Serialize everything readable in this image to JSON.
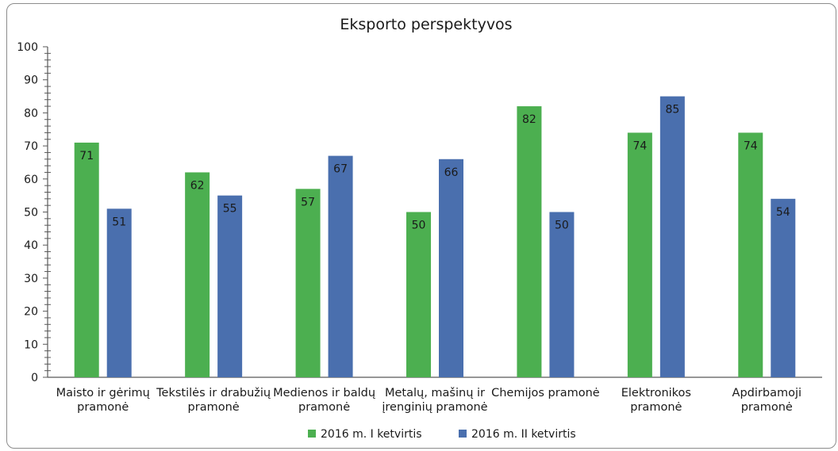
{
  "chart_data": {
    "type": "bar",
    "title": "Eksporto perspektyvos",
    "xlabel": "",
    "ylabel": "",
    "ylim": [
      0,
      100
    ],
    "yticks": [
      0,
      10,
      20,
      30,
      40,
      50,
      60,
      70,
      80,
      90,
      100
    ],
    "categories": [
      [
        "Maisto ir gėrimų",
        "pramonė"
      ],
      [
        "Tekstilės ir drabužių",
        "pramonė"
      ],
      [
        "Medienos ir baldų",
        "pramonė"
      ],
      [
        "Metalų, mašinų ir",
        "įrenginių pramonė"
      ],
      [
        "Chemijos pramonė"
      ],
      [
        "Elektronikos",
        "pramonė"
      ],
      [
        "Apdirbamoji",
        "pramonė"
      ]
    ],
    "series": [
      {
        "name": "2016 m. I ketvirtis",
        "color": "#4caf50",
        "values": [
          71,
          62,
          57,
          50,
          82,
          74,
          74
        ]
      },
      {
        "name": "2016 m. II ketvirtis",
        "color": "#4a6fae",
        "values": [
          51,
          55,
          67,
          66,
          50,
          85,
          54
        ]
      }
    ],
    "grid": false,
    "legend": "bottom-center",
    "data_labels": true
  }
}
